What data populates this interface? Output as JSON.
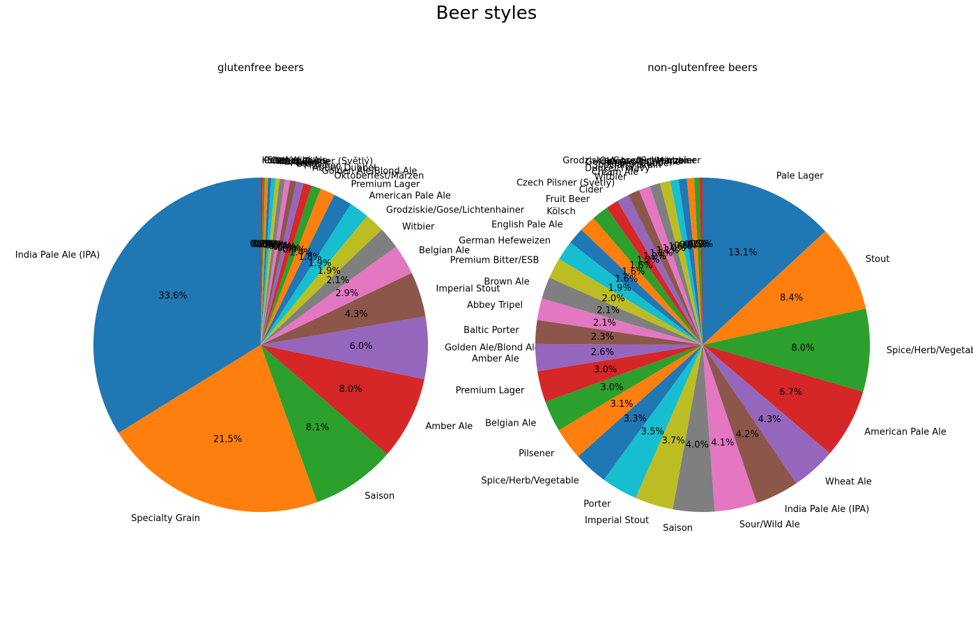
{
  "suptitle": "Beer styles",
  "palette": [
    "#1f77b4",
    "#ff7f0e",
    "#2ca02c",
    "#d62728",
    "#9467bd",
    "#8c564b",
    "#e377c2",
    "#7f7f7f",
    "#bcbd22",
    "#17becf"
  ],
  "chart_data": [
    {
      "type": "pie",
      "title": "glutenfree beers",
      "start_angle": 90,
      "counterclock": true,
      "slices": [
        {
          "label": "India Pale Ale (IPA)",
          "value": 33.6,
          "pct": "33.6%"
        },
        {
          "label": "Specialty Grain",
          "value": 21.5,
          "pct": "21.5%"
        },
        {
          "label": "Saison",
          "value": 8.1,
          "pct": "8.1%"
        },
        {
          "label": "Amber Ale",
          "value": 8.0,
          "pct": "8.0%"
        },
        {
          "label": "Golden Ale/Blond Ale",
          "value": 6.0,
          "pct": "6.0%"
        },
        {
          "label": "Imperial Stout",
          "value": 4.3,
          "pct": "4.3%"
        },
        {
          "label": "Belgian Ale",
          "value": 2.9,
          "pct": "2.9%"
        },
        {
          "label": "Witbier",
          "value": 2.1,
          "pct": "2.1%"
        },
        {
          "label": "Grodziskie/Gose/Lichtenhainer",
          "value": 1.9,
          "pct": "1.9%"
        },
        {
          "label": "American Pale Ale",
          "value": 1.9,
          "pct": "1.9%"
        },
        {
          "label": "Premium Lager",
          "value": 1.8,
          "pct": "1.8%"
        },
        {
          "label": "Oktoberfest/Märzen",
          "value": 1.4,
          "pct": "1.4%"
        },
        {
          "label": "Golden Ale/Blond Ale",
          "value": 0.9,
          "pct": "0.9%"
        },
        {
          "label": "Abbey Dubbel",
          "value": 0.8,
          "pct": "0.8%"
        },
        {
          "label": "Pilsener",
          "value": 0.7,
          "pct": "0.7%"
        },
        {
          "label": "Stout",
          "value": 0.6,
          "pct": "0.6%"
        },
        {
          "label": "Porter",
          "value": 0.5,
          "pct": "0.5%"
        },
        {
          "label": "Brown Ale",
          "value": 0.5,
          "pct": "0.5%"
        },
        {
          "label": "Fruit Beer",
          "value": 0.4,
          "pct": "0.4%"
        },
        {
          "label": "Czech Pilsner (Světlý)",
          "value": 0.4,
          "pct": "0.4%"
        },
        {
          "label": "Cider",
          "value": 0.3,
          "pct": "0.3%"
        },
        {
          "label": "Sour/Wild Ale",
          "value": 0.3,
          "pct": "0.3%"
        },
        {
          "label": "Pale Lager",
          "value": 0.2,
          "pct": "0.2%"
        },
        {
          "label": "Kölsch",
          "value": 0.2,
          "pct": "0.2%"
        }
      ]
    },
    {
      "type": "pie",
      "title": "non-glutenfree beers",
      "start_angle": 90,
      "counterclock": false,
      "slices": [
        {
          "label": "Pale Lager",
          "value": 13.1,
          "pct": "13.1%"
        },
        {
          "label": "Stout",
          "value": 8.4,
          "pct": "8.4%"
        },
        {
          "label": "Spice/Herb/Vegetable",
          "value": 8.0,
          "pct": "8.0%"
        },
        {
          "label": "American Pale Ale",
          "value": 6.7,
          "pct": "6.7%"
        },
        {
          "label": "Wheat Ale",
          "value": 4.3,
          "pct": "4.3%"
        },
        {
          "label": "India Pale Ale (IPA)",
          "value": 4.2,
          "pct": "4.2%"
        },
        {
          "label": "Sour/Wild Ale",
          "value": 4.1,
          "pct": "4.1%"
        },
        {
          "label": "Saison",
          "value": 4.0,
          "pct": "4.0%"
        },
        {
          "label": "Imperial Stout",
          "value": 3.7,
          "pct": "3.7%"
        },
        {
          "label": "Porter",
          "value": 3.5,
          "pct": "3.5%"
        },
        {
          "label": "Spice/Herb/Vegetable",
          "value": 3.3,
          "pct": "3.3%"
        },
        {
          "label": "Pilsener",
          "value": 3.1,
          "pct": "3.1%"
        },
        {
          "label": "Belgian Ale",
          "value": 3.0,
          "pct": "3.0%"
        },
        {
          "label": "Premium Lager",
          "value": 3.0,
          "pct": "3.0%"
        },
        {
          "label": "Amber Ale",
          "value": 2.6,
          "pct": "2.6%"
        },
        {
          "label": "Baltic Porter",
          "value": 2.3,
          "pct": "2.3%"
        },
        {
          "label": "Abbey Tripel",
          "value": 2.1,
          "pct": "2.1%"
        },
        {
          "label": "Brown Ale",
          "value": 2.1,
          "pct": "2.1%"
        },
        {
          "label": "Premium Bitter/ESB",
          "value": 2.0,
          "pct": "2.0%"
        },
        {
          "label": "German Hefeweizen",
          "value": 1.9,
          "pct": "1.9%"
        },
        {
          "label": "English Pale Ale",
          "value": 1.6,
          "pct": "1.6%"
        },
        {
          "label": "Kölsch",
          "value": 1.6,
          "pct": "1.6%"
        },
        {
          "label": "Fruit Beer",
          "value": 1.6,
          "pct": "1.6%"
        },
        {
          "label": "Cider",
          "value": 1.2,
          "pct": "1.2%"
        },
        {
          "label": "Czech Pilsner (Světlý)",
          "value": 1.2,
          "pct": "1.2%"
        },
        {
          "label": "Witbier",
          "value": 1.1,
          "pct": "1.1%"
        },
        {
          "label": "Cream Ale",
          "value": 1.1,
          "pct": "1.1%"
        },
        {
          "label": "Dunkel/Tmavý",
          "value": 1.0,
          "pct": "1.0%"
        },
        {
          "label": "Specialty Grain",
          "value": 1.0,
          "pct": "1.0%"
        },
        {
          "label": "Abbey Dubbel",
          "value": 0.8,
          "pct": "0.8%"
        },
        {
          "label": "Golden Ale/Blond Ale",
          "value": 0.8,
          "pct": "0.8%"
        },
        {
          "label": "Oktoberfest/Märzen",
          "value": 0.7,
          "pct": "0.7%"
        },
        {
          "label": "Schwarzbier",
          "value": 0.5,
          "pct": "0.5%"
        },
        {
          "label": "Grodziskie/Gose/Lichtenhainer",
          "value": 0.3,
          "pct": "0.3%"
        }
      ]
    }
  ]
}
